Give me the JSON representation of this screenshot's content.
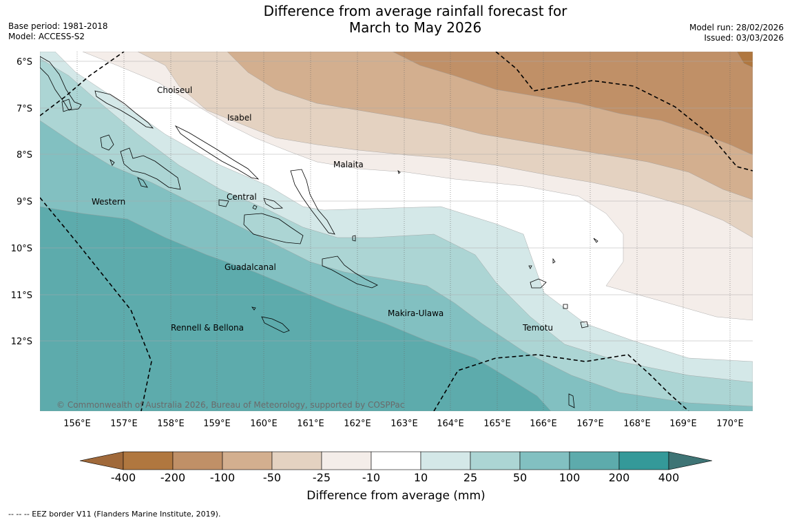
{
  "title_line1": "Difference from average rainfall forecast for",
  "title_line2": "March to May 2026",
  "base_period": "Base period: 1981-2018",
  "model": "Model: ACCESS-S2",
  "model_run": "Model run: 28/02/2026",
  "issued": "Issued: 03/03/2026",
  "copyright": "© Commonwealth of Australia 2026, Bureau of Meteorology, supported by COSPPac",
  "lat_labels": [
    "6°S",
    "7°S",
    "8°S",
    "9°S",
    "10°S",
    "11°S",
    "12°S"
  ],
  "lon_labels": [
    "156°E",
    "157°E",
    "158°E",
    "159°E",
    "160°E",
    "161°E",
    "162°E",
    "163°E",
    "164°E",
    "165°E",
    "166°E",
    "167°E",
    "168°E",
    "169°E",
    "170°E"
  ],
  "provinces": [
    {
      "name": "Choiseul",
      "lon": 158.04,
      "lat": -6.61
    },
    {
      "name": "Isabel",
      "lon": 159.45,
      "lat": -7.2
    },
    {
      "name": "Malaita",
      "lon": 161.47,
      "lat": -8.2
    },
    {
      "name": "Western",
      "lon": 156.66,
      "lat": -9.0
    },
    {
      "name": "Central",
      "lon": 159.5,
      "lat": -8.9
    },
    {
      "name": "Guadalcanal",
      "lon": 159.67,
      "lat": -10.42
    },
    {
      "name": "Makira-Ulawa",
      "lon": 163.21,
      "lat": -11.39
    },
    {
      "name": "Temotu",
      "lon": 165.8,
      "lat": -11.7
    },
    {
      "name": "Rennell & Bellona",
      "lon": 158.76,
      "lat": -11.7
    }
  ],
  "colorbar": {
    "title": "Difference from average (mm)",
    "tick_labels": [
      "-400",
      "-200",
      "-100",
      "-50",
      "-25",
      "-10",
      "10",
      "25",
      "50",
      "100",
      "200",
      "400"
    ],
    "colors": [
      "#a0693a",
      "#b0773f",
      "#c09067",
      "#d3af8f",
      "#e4d2c1",
      "#f4ede9",
      "#ffffff",
      "#d4e8e8",
      "#acd5d4",
      "#82c0c1",
      "#5dabac",
      "#349999",
      "#3e7475"
    ]
  },
  "footer": "--  --  -- EEZ border V11 (Flanders Marine Institute, 2019)."
}
